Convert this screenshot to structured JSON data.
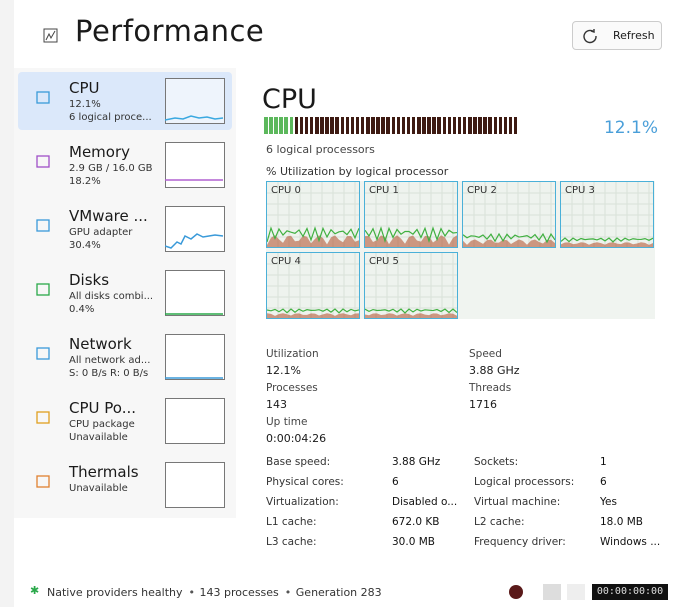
{
  "header": {
    "title": "Performance",
    "refresh": "Refresh"
  },
  "sidebar": [
    {
      "name": "CPU",
      "lines": [
        "12.1%",
        "6 logical proce..."
      ]
    },
    {
      "name": "Memory",
      "lines": [
        "2.9 GB / 16.0 GB",
        "18.2%"
      ]
    },
    {
      "name": "VMware ...",
      "lines": [
        "GPU adapter",
        "30.4%"
      ]
    },
    {
      "name": "Disks",
      "lines": [
        "All disks combi...",
        "0.4%"
      ]
    },
    {
      "name": "Network",
      "lines": [
        "All network ad...",
        "S: 0 B/s  R: 0 B/s"
      ]
    },
    {
      "name": "CPU Po...",
      "lines": [
        "CPU package",
        "Unavailable"
      ]
    },
    {
      "name": "Thermals",
      "lines": [
        "Unavailable"
      ]
    }
  ],
  "main": {
    "title": "CPU",
    "utilization": "12.1%",
    "subtitle": "6 logical processors",
    "graph_label": "% Utilization by logical processor",
    "cores": [
      "CPU 0",
      "CPU 1",
      "CPU 2",
      "CPU 3",
      "CPU 4",
      "CPU 5"
    ]
  },
  "stats": [
    {
      "label": "Utilization",
      "value": "12.1%"
    },
    {
      "label": "Speed",
      "value": "3.88 GHz"
    },
    {
      "label": "Processes",
      "value": "143"
    },
    {
      "label": "Threads",
      "value": "1716"
    },
    {
      "label": "Up time",
      "value": "0:00:04:26"
    }
  ],
  "details": [
    [
      "Base speed:",
      "3.88 GHz",
      "Sockets:",
      "1"
    ],
    [
      "Physical cores:",
      "6",
      "Logical processors:",
      "6"
    ],
    [
      "Virtualization:",
      "Disabled o...",
      "Virtual machine:",
      "Yes"
    ],
    [
      "L1 cache:",
      "672.0 KB",
      "L2 cache:",
      "18.0 MB"
    ],
    [
      "L3 cache:",
      "30.0 MB",
      "Frequency driver:",
      "Windows ..."
    ]
  ],
  "status": {
    "items": [
      "Native providers healthy",
      "143 processes",
      "Generation 283"
    ],
    "clock": "00:00:00:00"
  }
}
